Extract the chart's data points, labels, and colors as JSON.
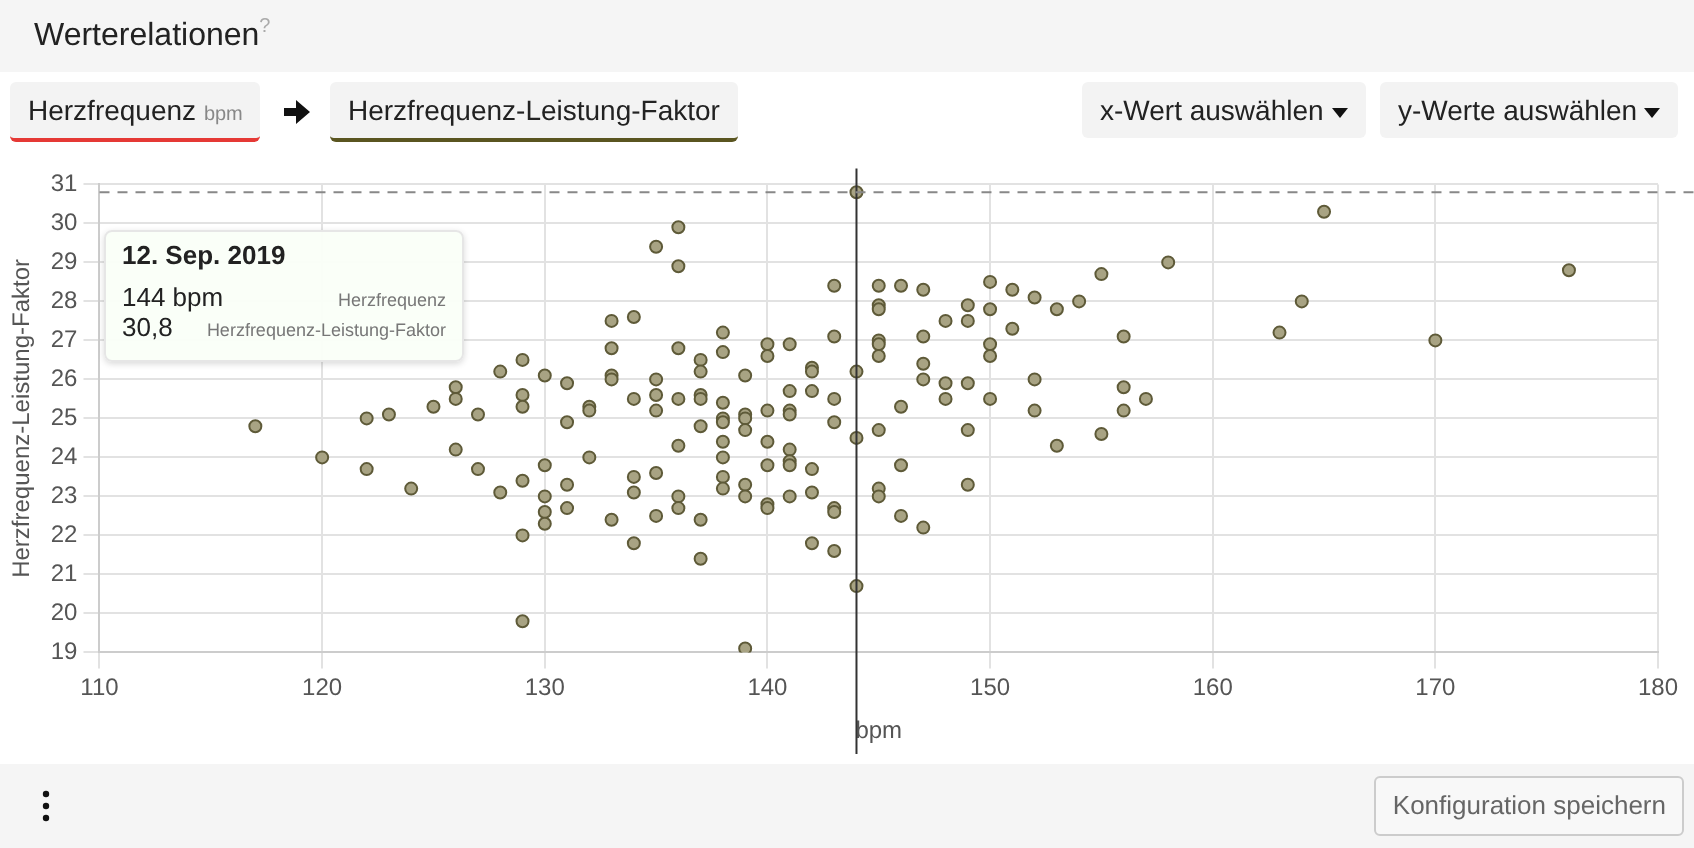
{
  "chart_data": {
    "type": "scatter",
    "title": "Werterelationen",
    "xlabel": "bpm",
    "ylabel": "Herzfrequenz-Leistung-Faktor",
    "annotations": [
      "?",
      "Herzfrequenz",
      "bpm",
      "Herzfrequenz-Leistung-Faktor",
      "x-Wert auswählen",
      "y-Werte auswählen",
      "Konfiguration speichern",
      "12. Sep. 2019",
      "144 bpm",
      "Herzfrequenz",
      "30,8",
      "Herzfrequenz-Leistung-Faktor"
    ],
    "xlim": [
      110,
      180
    ],
    "xticks": [
      110,
      120,
      130,
      140,
      150,
      160,
      170,
      180
    ],
    "ylim": [
      19,
      31
    ],
    "yticks": [
      19,
      20,
      21,
      22,
      23,
      24,
      25,
      26,
      27,
      28,
      29,
      30,
      31
    ],
    "grid": true,
    "legend": false,
    "marker": "circle",
    "ref_lines": [
      {
        "axis": "x",
        "value": 144,
        "color": "#333333",
        "line_style": "solid"
      },
      {
        "axis": "y",
        "value": 30.8,
        "color": "#888888",
        "line_style": "dashed"
      }
    ],
    "series": [
      {
        "color": "#a8a383",
        "x": [
          117,
          120,
          122,
          122,
          123,
          124,
          125,
          126,
          126,
          126,
          127,
          127,
          128,
          128,
          129,
          129,
          129,
          129,
          129,
          129,
          130,
          130,
          130,
          130,
          130,
          131,
          131,
          131,
          131,
          132,
          132,
          132,
          133,
          133,
          133,
          133,
          133,
          134,
          134,
          134,
          134,
          134,
          135,
          135,
          135,
          135,
          135,
          135,
          136,
          136,
          136,
          136,
          136,
          136,
          136,
          137,
          137,
          137,
          137,
          137,
          137,
          137,
          138,
          138,
          138,
          138,
          138,
          138,
          138,
          138,
          138,
          139,
          139,
          139,
          139,
          139,
          139,
          139,
          140,
          140,
          140,
          140,
          140,
          140,
          140,
          141,
          141,
          141,
          141,
          141,
          141,
          141,
          141,
          142,
          142,
          142,
          142,
          142,
          142,
          143,
          143,
          143,
          143,
          143,
          143,
          143,
          144,
          144,
          144,
          144,
          145,
          145,
          145,
          145,
          145,
          145,
          145,
          145,
          145,
          146,
          146,
          146,
          146,
          147,
          147,
          147,
          147,
          147,
          148,
          148,
          148,
          149,
          149,
          149,
          149,
          149,
          150,
          150,
          150,
          150,
          150,
          151,
          151,
          152,
          152,
          152,
          153,
          153,
          154,
          155,
          155,
          156,
          156,
          156,
          157,
          158,
          163,
          164,
          165,
          170,
          176
        ],
        "values": [
          24.8,
          24.0,
          25.0,
          23.7,
          25.1,
          23.2,
          25.3,
          25.8,
          25.5,
          24.2,
          25.1,
          23.7,
          26.2,
          23.1,
          26.5,
          25.6,
          25.3,
          23.4,
          22.0,
          19.8,
          26.1,
          23.8,
          23.0,
          22.6,
          22.3,
          25.9,
          24.9,
          23.3,
          22.7,
          25.3,
          25.2,
          24.0,
          27.5,
          26.8,
          26.1,
          26.0,
          22.4,
          27.6,
          25.5,
          23.5,
          23.1,
          21.8,
          29.4,
          26.0,
          25.6,
          25.2,
          23.6,
          22.5,
          29.9,
          28.9,
          26.8,
          25.5,
          24.3,
          23.0,
          22.7,
          26.5,
          26.2,
          25.6,
          25.5,
          24.8,
          22.4,
          21.4,
          27.2,
          26.7,
          25.4,
          25.0,
          24.9,
          24.4,
          24.0,
          23.5,
          23.2,
          26.1,
          25.1,
          25.0,
          24.7,
          23.3,
          23.0,
          19.1,
          26.9,
          26.6,
          25.2,
          24.4,
          23.8,
          22.8,
          22.7,
          26.9,
          25.7,
          25.2,
          25.1,
          24.2,
          23.9,
          23.8,
          23.0,
          26.3,
          26.2,
          25.7,
          23.7,
          23.1,
          21.8,
          28.4,
          27.1,
          25.5,
          24.9,
          22.7,
          22.6,
          21.6,
          30.8,
          26.2,
          24.5,
          20.7,
          28.4,
          27.9,
          27.8,
          27.0,
          26.9,
          26.6,
          24.7,
          23.2,
          23.0,
          28.4,
          25.3,
          23.8,
          22.5,
          28.3,
          27.1,
          26.4,
          26.0,
          22.2,
          27.5,
          25.9,
          25.5,
          27.9,
          27.5,
          25.9,
          24.7,
          23.3,
          28.5,
          27.8,
          26.9,
          26.6,
          25.5,
          28.3,
          27.3,
          28.1,
          26.0,
          25.2,
          27.8,
          24.3,
          28.0,
          28.7,
          24.6,
          27.1,
          25.8,
          25.2,
          25.5,
          29.0,
          27.2,
          28.0,
          30.3,
          27.0,
          28.8
        ]
      }
    ]
  }
}
